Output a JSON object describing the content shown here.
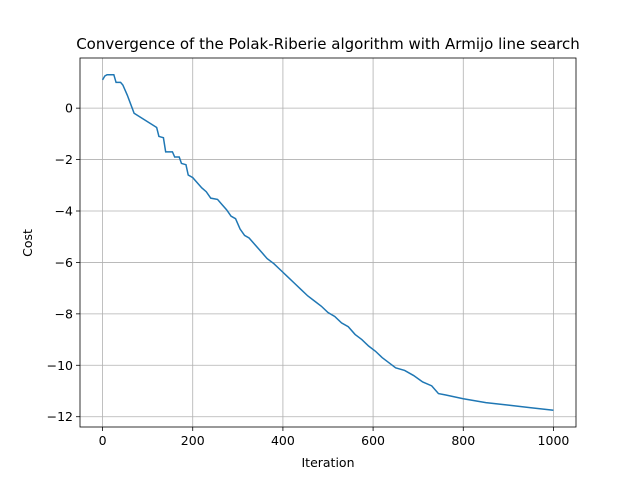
{
  "chart_data": {
    "type": "line",
    "title": "Convergence of the Polak-Riberie algorithm with Armijo line search",
    "x_label": "Iteration",
    "y_label": "Cost",
    "x": [
      0,
      5,
      10,
      25,
      30,
      40,
      45,
      55,
      70,
      120,
      125,
      135,
      140,
      155,
      160,
      170,
      175,
      185,
      190,
      200,
      210,
      220,
      230,
      240,
      255,
      265,
      275,
      285,
      295,
      305,
      315,
      325,
      335,
      345,
      355,
      365,
      380,
      395,
      410,
      425,
      440,
      455,
      470,
      485,
      500,
      515,
      530,
      545,
      560,
      575,
      590,
      605,
      620,
      635,
      650,
      670,
      690,
      710,
      730,
      745,
      760,
      800,
      850,
      900,
      950,
      1000
    ],
    "values": [
      1.1,
      1.25,
      1.3,
      1.3,
      1.0,
      1.0,
      0.9,
      0.5,
      -0.2,
      -0.75,
      -1.1,
      -1.15,
      -1.7,
      -1.7,
      -1.9,
      -1.9,
      -2.15,
      -2.2,
      -2.6,
      -2.7,
      -2.9,
      -3.1,
      -3.25,
      -3.5,
      -3.55,
      -3.75,
      -3.95,
      -4.2,
      -4.3,
      -4.7,
      -4.95,
      -5.05,
      -5.25,
      -5.45,
      -5.65,
      -5.85,
      -6.05,
      -6.3,
      -6.55,
      -6.8,
      -7.05,
      -7.3,
      -7.5,
      -7.7,
      -7.95,
      -8.1,
      -8.35,
      -8.5,
      -8.8,
      -9.0,
      -9.25,
      -9.45,
      -9.7,
      -9.9,
      -10.1,
      -10.2,
      -10.4,
      -10.65,
      -10.8,
      -11.1,
      -11.15,
      -11.3,
      -11.45,
      -11.55,
      -11.65,
      -11.75
    ],
    "color": "#1f77b4",
    "xlim": [
      -50,
      1050
    ],
    "ylim": [
      -12.4,
      1.95
    ],
    "xticks": [
      0,
      200,
      400,
      600,
      800,
      1000
    ],
    "yticks": [
      {
        "value": -12,
        "label": "−12"
      },
      {
        "value": -10,
        "label": "−10"
      },
      {
        "value": -8,
        "label": "−8"
      },
      {
        "value": -6,
        "label": "−6"
      },
      {
        "value": -4,
        "label": "−4"
      },
      {
        "value": -2,
        "label": "−2"
      },
      0
    ],
    "grid": true
  }
}
